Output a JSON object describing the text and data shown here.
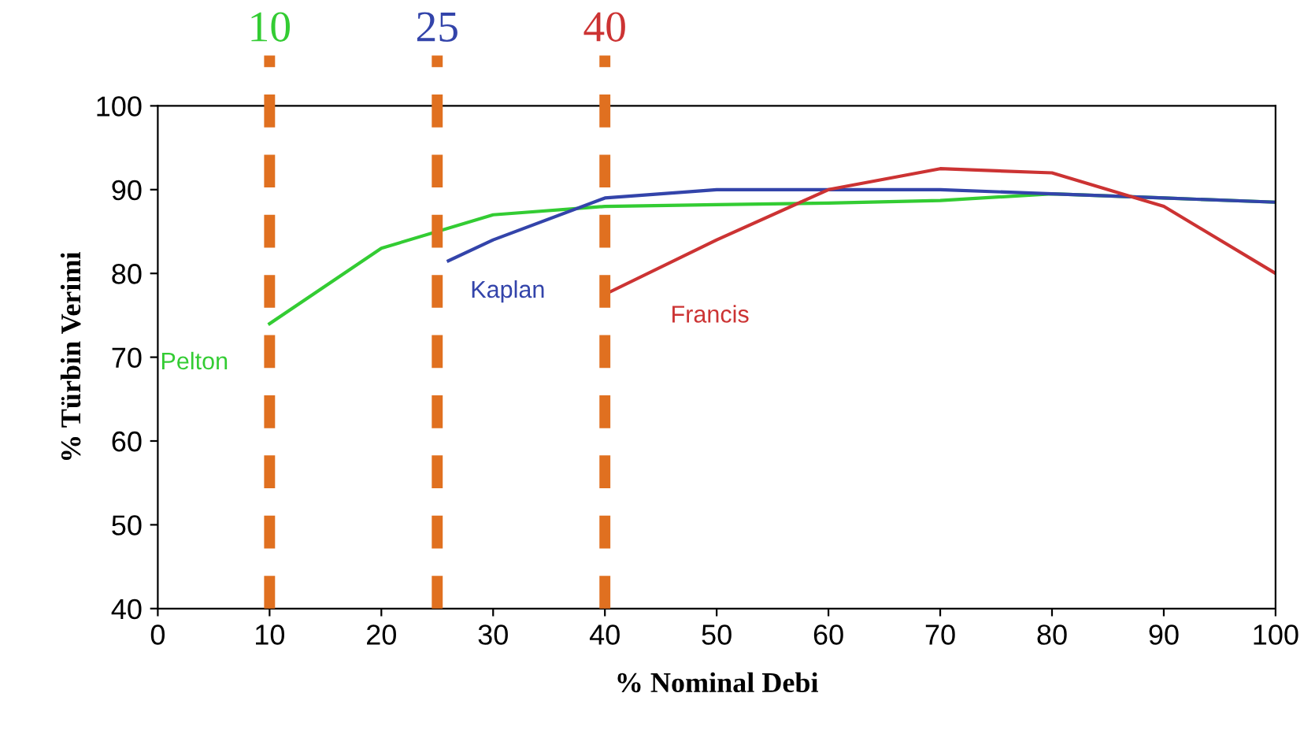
{
  "chart_data": {
    "type": "line",
    "xlabel": "% Nominal Debi",
    "ylabel": "% Türbin Verimi",
    "xlim": [
      0,
      100
    ],
    "ylim": [
      40,
      100
    ],
    "xticks": [
      0,
      10,
      20,
      30,
      40,
      50,
      60,
      70,
      80,
      90,
      100
    ],
    "yticks": [
      40,
      50,
      60,
      70,
      80,
      90,
      100
    ],
    "grid": false,
    "legend": false,
    "marker": "none",
    "line_style": "solid",
    "series": [
      {
        "name": "Pelton",
        "color": "#33cc33",
        "x": [
          10,
          20,
          30,
          40,
          50,
          60,
          70,
          80,
          90,
          100
        ],
        "values": [
          74,
          83,
          87,
          88,
          88.2,
          88.4,
          88.7,
          89.5,
          89,
          88.5
        ]
      },
      {
        "name": "Kaplan",
        "color": "#3344aa",
        "x": [
          26,
          30,
          40,
          50,
          60,
          70,
          80,
          90,
          100
        ],
        "values": [
          81.5,
          84,
          89,
          90,
          90,
          90,
          89.5,
          89,
          88.5
        ]
      },
      {
        "name": "Francis",
        "color": "#cc3333",
        "x": [
          40,
          50,
          60,
          70,
          80,
          90,
          100
        ],
        "values": [
          77.5,
          84,
          90,
          92.5,
          92,
          88,
          80
        ]
      }
    ],
    "ref_lines": [
      {
        "axis": "x",
        "value": 10,
        "label": "10",
        "color": "#e07020",
        "line_style": "dashed"
      },
      {
        "axis": "x",
        "value": 25,
        "label": "25",
        "color": "#e07020",
        "line_style": "dashed"
      },
      {
        "axis": "x",
        "value": 40,
        "label": "40",
        "color": "#e07020",
        "line_style": "dashed"
      }
    ]
  }
}
